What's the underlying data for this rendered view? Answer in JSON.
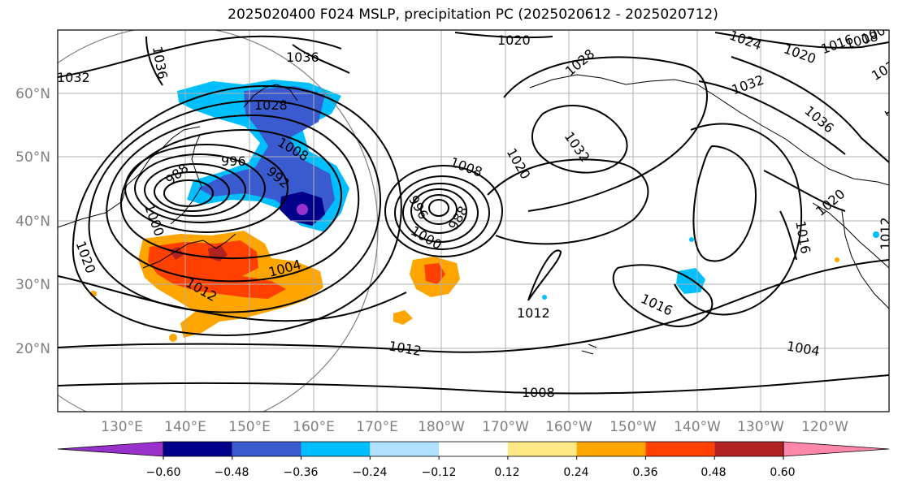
{
  "title": "2025020400 F024 MSLP, precipitation PC (2025020612 - 2025020712)",
  "map": {
    "lat_labels": [
      "60°N",
      "50°N",
      "40°N",
      "30°N",
      "20°N"
    ],
    "lon_labels": [
      "130°E",
      "140°E",
      "150°E",
      "160°E",
      "170°E",
      "180°W",
      "170°W",
      "160°W",
      "150°W",
      "140°W",
      "130°W",
      "120°W"
    ],
    "contour_labels": [
      "1032",
      "1036",
      "1028",
      "1020",
      "1028",
      "1024",
      "1020",
      "1016",
      "1008",
      "1004",
      "1032",
      "1036",
      "1032",
      "1036",
      "996",
      "988",
      "992",
      "1008",
      "1000",
      "1020",
      "1004",
      "1012",
      "1008",
      "996",
      "1000",
      "988",
      "1020",
      "1012",
      "1016",
      "1012",
      "1004",
      "1008",
      "1020",
      "1016",
      "1012",
      "1032",
      "1036"
    ]
  },
  "colorbar": {
    "colors": [
      "#9932cc",
      "#00008b",
      "#3a5bcf",
      "#00bfff",
      "#b0e2ff",
      "#ffffff",
      "#ffe985",
      "#ffa500",
      "#ff4000",
      "#b22222",
      "#ff88aa"
    ],
    "tick_labels": [
      "−0.60",
      "−0.48",
      "−0.36",
      "−0.24",
      "−0.12",
      "0.12",
      "0.24",
      "0.36",
      "0.48",
      "0.60"
    ]
  }
}
